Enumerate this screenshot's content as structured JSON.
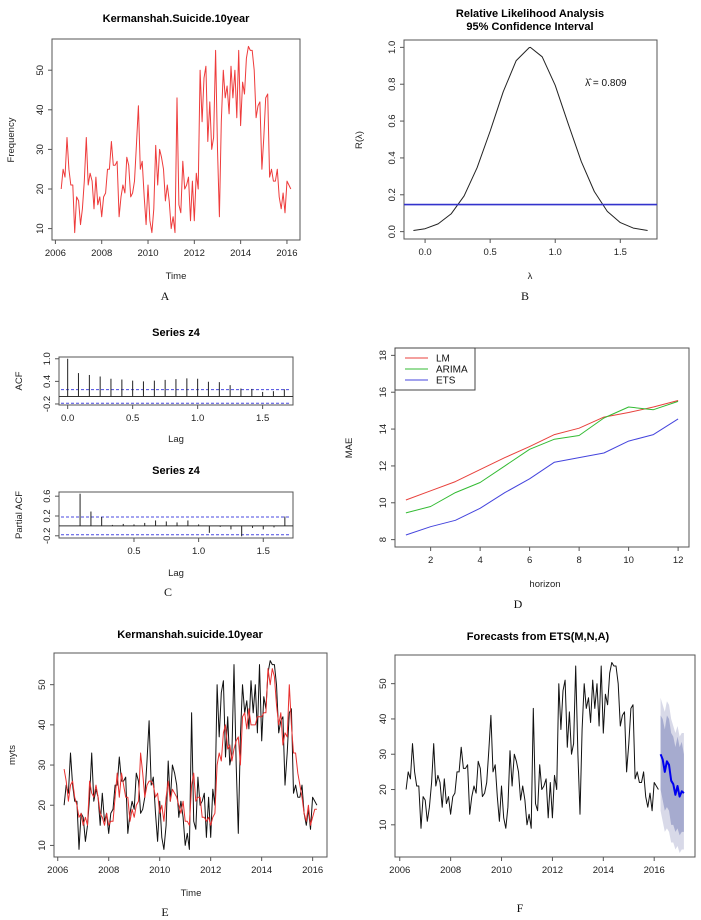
{
  "chart_data": [
    {
      "panel_label": "A",
      "type": "line",
      "title": "Kermanshah.Suicide.10year",
      "xlabel": "Time",
      "ylabel": "Frequency",
      "start": 2006.25,
      "frequency": 12,
      "xtick_labels": [
        "2006",
        "2008",
        "2010",
        "2012",
        "2014",
        "2016"
      ],
      "ytick_labels": [
        "10",
        "20",
        "30",
        "40",
        "50"
      ],
      "series": [
        {
          "name": "observed",
          "color": "#ee3b3b",
          "values": [
            20,
            25,
            23,
            33,
            25,
            21,
            21,
            9,
            18,
            17,
            11,
            15,
            22,
            33,
            21,
            24,
            22,
            15,
            23,
            16,
            18,
            13,
            18,
            19,
            25,
            25,
            32,
            26,
            26,
            27,
            13,
            18,
            21,
            19,
            28,
            26,
            18,
            19,
            22,
            31,
            41,
            25,
            27,
            18,
            11,
            21,
            12,
            9,
            15,
            31,
            21,
            30,
            28,
            25,
            17,
            21,
            17,
            10,
            13,
            9,
            43,
            16,
            14,
            27,
            20,
            21,
            23,
            12,
            22,
            12,
            24,
            20,
            50,
            37,
            48,
            51,
            32,
            42,
            30,
            33,
            55,
            30,
            13,
            37,
            50,
            43,
            46,
            39,
            51,
            43,
            50,
            38,
            55,
            36,
            47,
            44,
            53,
            56,
            55,
            55,
            50,
            38,
            41,
            42,
            25,
            33,
            43,
            44,
            23,
            25,
            22,
            22,
            25,
            18,
            15,
            19,
            14,
            22,
            21,
            20
          ]
        }
      ]
    },
    {
      "panel_label": "B",
      "type": "line",
      "title": "Relative Likelihood Analysis",
      "subtitle": "95% Confidence Interval",
      "xlabel": "λ",
      "ylabel": "R(λ)",
      "annotation": "λ̂ = 0.809",
      "mle": 0.809,
      "cutoff": 0.147,
      "cutoff_color": "#3333cc",
      "xtick_labels": [
        "0.0",
        "0.5",
        "1.0",
        "1.5"
      ],
      "ytick_labels": [
        "0.0",
        "0.2",
        "0.4",
        "0.6",
        "0.8",
        "1.0"
      ],
      "x": [
        -0.09,
        0.0,
        0.1,
        0.2,
        0.3,
        0.4,
        0.5,
        0.6,
        0.7,
        0.8,
        0.809,
        0.9,
        1.0,
        1.1,
        1.2,
        1.3,
        1.4,
        1.5,
        1.6,
        1.71
      ],
      "y": [
        0.006,
        0.016,
        0.042,
        0.096,
        0.194,
        0.347,
        0.546,
        0.759,
        0.928,
        0.999,
        1.0,
        0.949,
        0.794,
        0.585,
        0.38,
        0.218,
        0.11,
        0.049,
        0.019,
        0.006
      ]
    },
    {
      "panel_label": "C",
      "type": "bar",
      "title": "Series  z4",
      "xlabel": "Lag",
      "ylabel": "ACF",
      "ci": 0.18,
      "xtick_labels": [
        "0.0",
        "0.5",
        "1.0",
        "1.5"
      ],
      "ytick_labels": [
        "-0.2",
        "0.4",
        "1.0"
      ],
      "lags": [
        0,
        0.083,
        0.167,
        0.25,
        0.333,
        0.417,
        0.5,
        0.583,
        0.667,
        0.75,
        0.833,
        0.917,
        1.0,
        1.083,
        1.167,
        1.25,
        1.333,
        1.417,
        1.5,
        1.583,
        1.667
      ],
      "values": [
        1.0,
        0.62,
        0.57,
        0.53,
        0.47,
        0.45,
        0.42,
        0.4,
        0.42,
        0.44,
        0.46,
        0.48,
        0.47,
        0.39,
        0.38,
        0.3,
        0.21,
        0.2,
        0.12,
        0.14,
        0.19
      ]
    },
    {
      "panel_label": "C",
      "type": "bar",
      "title": "Series  z4",
      "xlabel": "Lag",
      "ylabel": "Partial ACF",
      "ci": 0.18,
      "xtick_labels": [
        "0.5",
        "1.0",
        "1.5"
      ],
      "ytick_labels": [
        "-0.2",
        "0.2",
        "0.6"
      ],
      "lags": [
        0.083,
        0.167,
        0.25,
        0.333,
        0.417,
        0.5,
        0.583,
        0.667,
        0.75,
        0.833,
        0.917,
        1.0,
        1.083,
        1.167,
        1.25,
        1.333,
        1.417,
        1.5,
        1.583,
        1.667
      ],
      "values": [
        0.65,
        0.29,
        0.18,
        0.02,
        0.04,
        0.03,
        0.06,
        0.11,
        0.09,
        0.07,
        0.11,
        0.03,
        -0.14,
        -0.02,
        -0.07,
        -0.21,
        -0.04,
        -0.07,
        -0.03,
        0.19
      ]
    },
    {
      "panel_label": "D",
      "type": "line",
      "title": "",
      "xlabel": "horizon",
      "ylabel": "MAE",
      "legend_position": "top-left",
      "ylim": [
        8,
        18
      ],
      "xtick_labels": [
        "2",
        "4",
        "6",
        "8",
        "10",
        "12"
      ],
      "ytick_labels": [
        "8",
        "10",
        "12",
        "14",
        "16",
        "18"
      ],
      "x": [
        1,
        2,
        3,
        4,
        5,
        6,
        7,
        8,
        9,
        10,
        11,
        12
      ],
      "series": [
        {
          "name": "LM",
          "color": "#e8413c",
          "values": [
            10.15,
            10.65,
            11.15,
            11.8,
            12.45,
            13.05,
            13.7,
            14.05,
            14.65,
            14.9,
            15.2,
            15.55
          ]
        },
        {
          "name": "ARIMA",
          "color": "#33bb33",
          "values": [
            9.45,
            9.8,
            10.55,
            11.1,
            12.0,
            12.9,
            13.45,
            13.65,
            14.6,
            15.2,
            15.05,
            15.5
          ]
        },
        {
          "name": "ETS",
          "color": "#4444dd",
          "values": [
            8.25,
            8.7,
            9.05,
            9.7,
            10.55,
            11.3,
            12.2,
            12.45,
            12.7,
            13.35,
            13.7,
            14.55
          ]
        }
      ]
    },
    {
      "panel_label": "E",
      "type": "line",
      "title": "Kermanshah.suicide.10year",
      "xlabel": "Time",
      "ylabel": "myts",
      "start": 2006.25,
      "frequency": 12,
      "xtick_labels": [
        "2006",
        "2008",
        "2010",
        "2012",
        "2014",
        "2016"
      ],
      "ytick_labels": [
        "10",
        "20",
        "30",
        "40",
        "50"
      ],
      "series": [
        {
          "name": "observed",
          "color": "#111111",
          "values": [
            20,
            25,
            23,
            33,
            25,
            21,
            21,
            9,
            18,
            17,
            11,
            15,
            22,
            33,
            21,
            24,
            22,
            15,
            23,
            16,
            18,
            13,
            18,
            19,
            25,
            25,
            32,
            26,
            26,
            27,
            13,
            18,
            21,
            19,
            28,
            26,
            18,
            19,
            22,
            31,
            41,
            25,
            27,
            18,
            11,
            21,
            12,
            9,
            15,
            31,
            21,
            30,
            28,
            25,
            17,
            21,
            17,
            10,
            13,
            9,
            43,
            16,
            14,
            27,
            20,
            21,
            23,
            12,
            22,
            12,
            24,
            20,
            50,
            37,
            48,
            51,
            32,
            42,
            30,
            33,
            55,
            30,
            13,
            37,
            50,
            43,
            46,
            39,
            51,
            43,
            50,
            38,
            55,
            36,
            47,
            44,
            53,
            56,
            55,
            55,
            50,
            38,
            41,
            42,
            25,
            33,
            43,
            44,
            23,
            25,
            22,
            22,
            25,
            18,
            15,
            19,
            14,
            22,
            21,
            20
          ]
        },
        {
          "name": "fitted",
          "color": "#e8302f",
          "values": [
            29,
            26,
            21,
            25,
            26,
            22,
            20,
            17,
            18,
            15,
            17,
            15,
            26,
            23,
            22,
            25,
            22,
            18,
            17,
            15,
            18,
            15,
            16,
            16,
            22,
            28,
            22,
            28,
            25,
            22,
            22,
            16,
            19,
            17,
            20,
            21,
            33,
            28,
            22,
            25,
            26,
            26,
            25,
            22,
            23,
            18,
            20,
            16,
            22,
            26,
            21,
            24,
            23,
            22,
            20,
            18,
            21,
            16,
            16,
            15,
            25,
            28,
            21,
            22,
            22,
            17,
            17,
            16,
            17,
            15,
            17,
            18,
            30,
            33,
            31,
            38,
            40,
            34,
            35,
            31,
            34,
            36,
            37,
            30,
            42,
            43,
            39,
            44,
            40,
            40,
            40,
            42,
            42,
            42,
            43,
            43,
            54,
            50,
            54,
            52,
            45,
            40,
            43,
            35,
            38,
            37,
            50,
            40,
            33,
            33,
            28,
            25,
            22,
            18,
            16,
            20,
            15,
            17,
            19,
            19
          ]
        }
      ]
    },
    {
      "panel_label": "F",
      "type": "line",
      "title": "Forecasts from ETS(M,N,A)",
      "xlabel": "",
      "ylabel": "",
      "start": 2006.25,
      "frequency": 12,
      "forecast_start": 2016.25,
      "xtick_labels": [
        "2006",
        "2008",
        "2010",
        "2012",
        "2014",
        "2016"
      ],
      "ytick_labels": [
        "10",
        "20",
        "30",
        "40",
        "50"
      ],
      "colors": {
        "observed": "#111111",
        "forecast": "#0000ee",
        "band80": "#a6abcf",
        "band95": "#d8d9e8"
      },
      "observed": [
        20,
        25,
        23,
        33,
        25,
        21,
        21,
        9,
        18,
        17,
        11,
        15,
        22,
        33,
        21,
        24,
        22,
        15,
        23,
        16,
        18,
        13,
        18,
        19,
        25,
        25,
        32,
        26,
        26,
        27,
        13,
        18,
        21,
        19,
        28,
        26,
        18,
        19,
        22,
        31,
        41,
        25,
        27,
        18,
        11,
        21,
        12,
        9,
        15,
        31,
        21,
        30,
        28,
        25,
        17,
        21,
        17,
        10,
        13,
        9,
        43,
        16,
        14,
        27,
        20,
        21,
        23,
        12,
        22,
        12,
        24,
        20,
        50,
        37,
        48,
        51,
        32,
        42,
        30,
        33,
        55,
        30,
        13,
        37,
        50,
        43,
        46,
        39,
        51,
        43,
        50,
        38,
        55,
        36,
        47,
        44,
        53,
        56,
        55,
        55,
        50,
        38,
        41,
        42,
        25,
        33,
        43,
        44,
        23,
        25,
        22,
        22,
        25,
        18,
        15,
        19,
        14,
        22,
        21,
        20
      ],
      "forecast": [
        30,
        28.5,
        25,
        28,
        27,
        22.5,
        21.5,
        18.5,
        21,
        18,
        19.5,
        19
      ],
      "lo80": [
        20,
        17,
        14,
        15,
        14,
        10,
        10,
        8,
        9,
        7,
        8,
        8
      ],
      "hi80": [
        41,
        40,
        37,
        41,
        40,
        36,
        35,
        32,
        35,
        32,
        33.5,
        30
      ],
      "lo95": [
        14,
        11,
        8,
        9,
        8,
        5,
        5,
        3,
        4,
        2,
        3,
        3
      ],
      "hi95": [
        46,
        44,
        42,
        45,
        44,
        40,
        38,
        36,
        38,
        35,
        36,
        36
      ]
    }
  ]
}
